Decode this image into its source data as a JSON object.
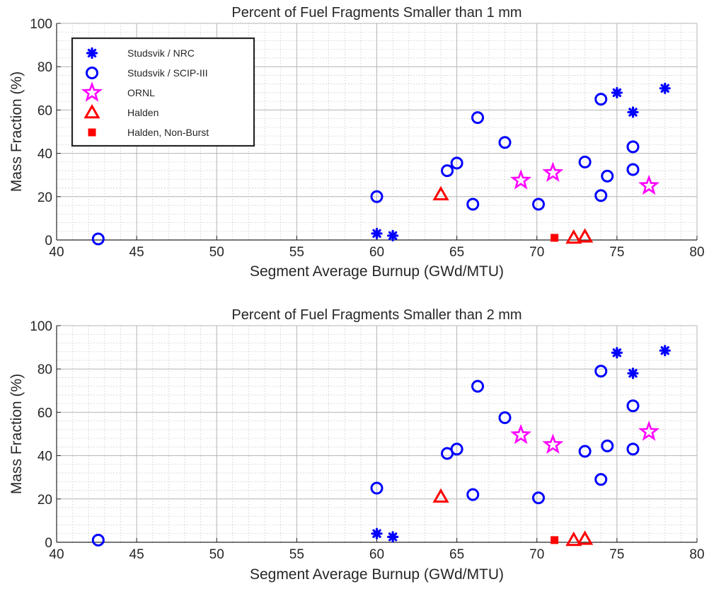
{
  "chart_data": [
    {
      "type": "scatter",
      "title": "Percent of Fuel Fragments Smaller than 1 mm",
      "xlabel": "Segment Average Burnup (GWd/MTU)",
      "ylabel": "Mass Fraction (%)",
      "xlim": [
        40,
        80
      ],
      "ylim": [
        0,
        100
      ],
      "xticks": [
        "40",
        "45",
        "50",
        "55",
        "60",
        "65",
        "70",
        "75",
        "80"
      ],
      "yticks": [
        "0",
        "20",
        "40",
        "60",
        "80",
        "100"
      ],
      "grid": true,
      "minor_grid": true,
      "legend_position": "top-left",
      "series": [
        {
          "name": "Studsvik / NRC",
          "marker": "asterisk",
          "color": "#0000ff",
          "points": [
            [
              60,
              3
            ],
            [
              61,
              2
            ],
            [
              75,
              68
            ],
            [
              76,
              59
            ],
            [
              78,
              70
            ]
          ]
        },
        {
          "name": "Studsvik / SCIP-III",
          "marker": "circle",
          "color": "#0000ff",
          "points": [
            [
              42.6,
              0.5
            ],
            [
              60,
              20
            ],
            [
              64.4,
              32
            ],
            [
              65,
              35.5
            ],
            [
              66,
              16.5
            ],
            [
              66.3,
              56.5
            ],
            [
              68,
              45
            ],
            [
              70.1,
              16.5
            ],
            [
              73,
              36
            ],
            [
              74,
              65
            ],
            [
              74,
              20.5
            ],
            [
              74.4,
              29.5
            ],
            [
              76,
              43
            ],
            [
              76,
              32.5
            ]
          ]
        },
        {
          "name": "ORNL",
          "marker": "star",
          "color": "#ff00ff",
          "points": [
            [
              69,
              27.5
            ],
            [
              71,
              31
            ],
            [
              77,
              25
            ]
          ]
        },
        {
          "name": "Halden",
          "marker": "triangle",
          "color": "#ff0000",
          "points": [
            [
              64,
              21
            ],
            [
              72.3,
              1
            ],
            [
              73,
              1.5
            ]
          ]
        },
        {
          "name": "Halden, Non-Burst",
          "marker": "square",
          "color": "#ff0000",
          "points": [
            [
              71.1,
              1
            ]
          ]
        }
      ]
    },
    {
      "type": "scatter",
      "title": "Percent of Fuel Fragments Smaller than 2 mm",
      "xlabel": "Segment Average Burnup (GWd/MTU)",
      "ylabel": "Mass Fraction (%)",
      "xlim": [
        40,
        80
      ],
      "ylim": [
        0,
        100
      ],
      "xticks": [
        "40",
        "45",
        "50",
        "55",
        "60",
        "65",
        "70",
        "75",
        "80"
      ],
      "yticks": [
        "0",
        "20",
        "40",
        "60",
        "80",
        "100"
      ],
      "grid": true,
      "minor_grid": true,
      "legend_position": "none",
      "series": [
        {
          "name": "Studsvik / NRC",
          "marker": "asterisk",
          "color": "#0000ff",
          "points": [
            [
              60,
              4
            ],
            [
              61,
              2.5
            ],
            [
              75,
              87.5
            ],
            [
              76,
              78
            ],
            [
              78,
              88.5
            ]
          ]
        },
        {
          "name": "Studsvik / SCIP-III",
          "marker": "circle",
          "color": "#0000ff",
          "points": [
            [
              42.6,
              1
            ],
            [
              60,
              25
            ],
            [
              64.4,
              41
            ],
            [
              65,
              43
            ],
            [
              66,
              22
            ],
            [
              66.3,
              72
            ],
            [
              68,
              57.5
            ],
            [
              70.1,
              20.5
            ],
            [
              73,
              42
            ],
            [
              74,
              79
            ],
            [
              74,
              29
            ],
            [
              74.4,
              44.5
            ],
            [
              76,
              63
            ],
            [
              76,
              43
            ]
          ]
        },
        {
          "name": "ORNL",
          "marker": "star",
          "color": "#ff00ff",
          "points": [
            [
              69,
              49.5
            ],
            [
              71,
              45
            ],
            [
              77,
              51
            ]
          ]
        },
        {
          "name": "Halden",
          "marker": "triangle",
          "color": "#ff0000",
          "points": [
            [
              64,
              21
            ],
            [
              72.3,
              1
            ],
            [
              73,
              1.5
            ]
          ]
        },
        {
          "name": "Halden, Non-Burst",
          "marker": "square",
          "color": "#ff0000",
          "points": [
            [
              71.1,
              1
            ]
          ]
        }
      ]
    }
  ]
}
